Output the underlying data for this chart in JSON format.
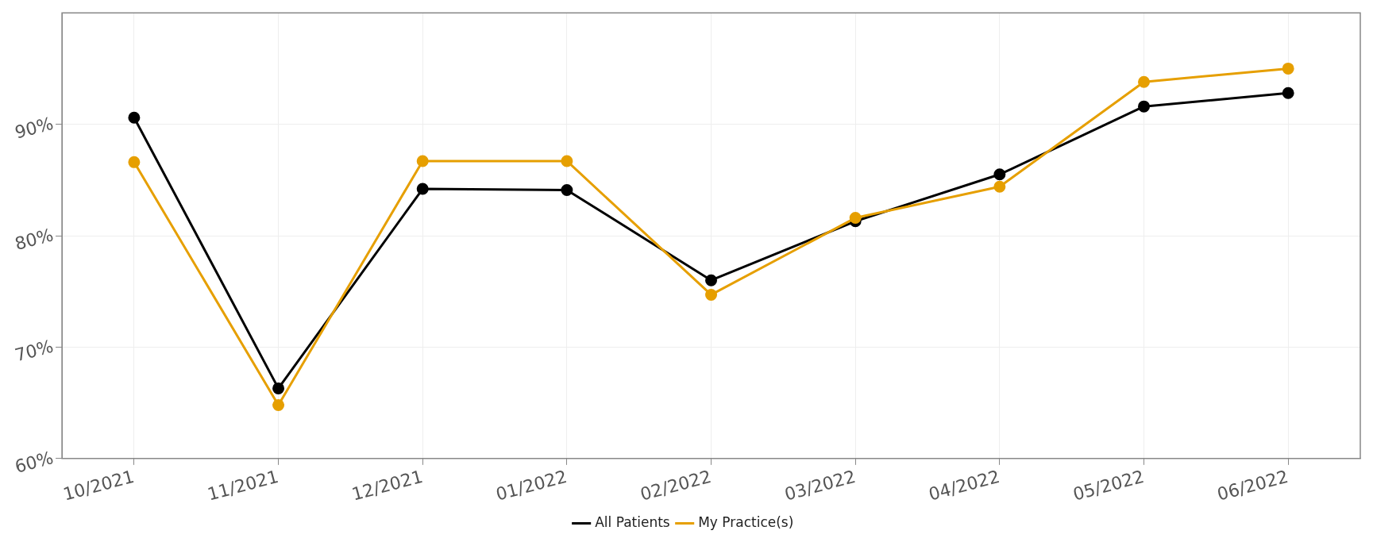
{
  "chart_data": {
    "type": "line",
    "categories": [
      "10/2021",
      "11/2021",
      "12/2021",
      "01/2022",
      "02/2022",
      "03/2022",
      "04/2022",
      "05/2022",
      "06/2022"
    ],
    "series": [
      {
        "name": "All Patients",
        "color": "#000000",
        "values": [
          90.6,
          66.3,
          84.2,
          84.1,
          76.0,
          81.3,
          85.5,
          91.6,
          92.8
        ]
      },
      {
        "name": "My Practice(s)",
        "color": "#e69f00",
        "values": [
          86.6,
          64.8,
          86.7,
          86.7,
          74.7,
          81.6,
          84.4,
          93.8,
          95.0
        ]
      }
    ],
    "ylim": [
      60,
      100
    ],
    "yticks": [
      {
        "value": 60,
        "label": "60%"
      },
      {
        "value": 70,
        "label": "70%"
      },
      {
        "value": 80,
        "label": "80%"
      },
      {
        "value": 90,
        "label": "90%"
      }
    ],
    "grid": true,
    "legend": "bottom",
    "marker": "circle",
    "line_style": "solid"
  }
}
